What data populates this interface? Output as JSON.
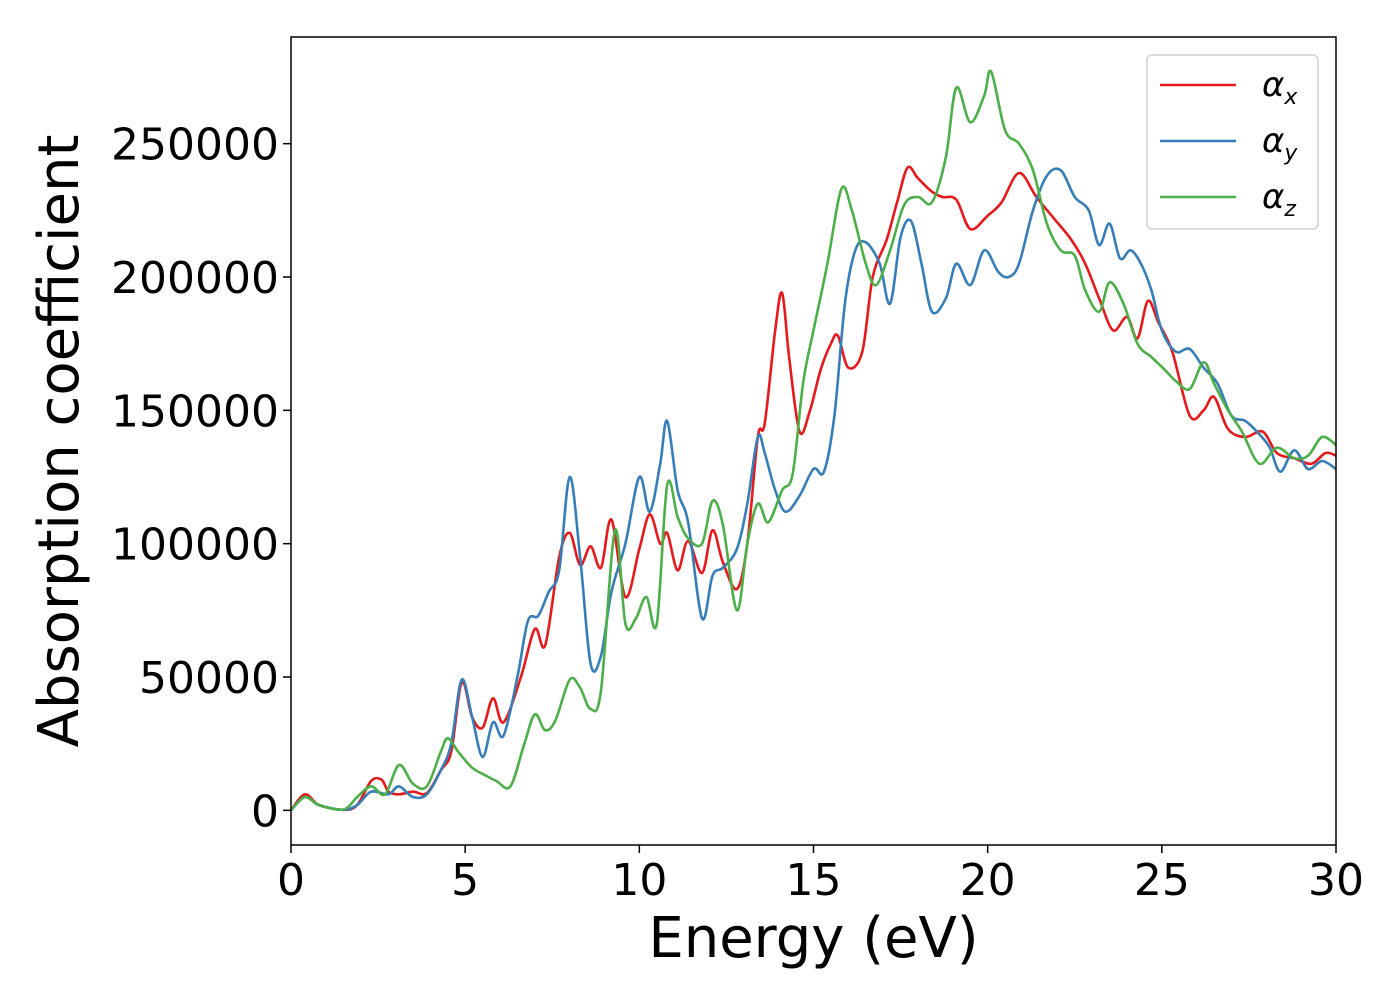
{
  "chart_data": {
    "type": "line",
    "title": "",
    "xlabel": "Energy (eV)",
    "ylabel": "Absorption coefficient",
    "xlim": [
      0,
      30
    ],
    "ylim": [
      -13000,
      290000
    ],
    "xticks": [
      0,
      5,
      10,
      15,
      20,
      25,
      30
    ],
    "yticks": [
      0,
      50000,
      100000,
      150000,
      200000,
      250000
    ],
    "grid": false,
    "legend_position": "top-right",
    "series": [
      {
        "name": "α",
        "subscript": "x",
        "color": "#e41a1c",
        "points": [
          [
            0,
            0
          ],
          [
            0.4,
            6000
          ],
          [
            0.8,
            2000
          ],
          [
            1.5,
            200
          ],
          [
            1.9,
            2000
          ],
          [
            2.3,
            11000
          ],
          [
            2.6,
            11500
          ],
          [
            2.8,
            7000
          ],
          [
            3.1,
            6000
          ],
          [
            3.5,
            7000
          ],
          [
            3.9,
            6500
          ],
          [
            4.3,
            15000
          ],
          [
            4.6,
            22000
          ],
          [
            4.9,
            48000
          ],
          [
            5.2,
            35000
          ],
          [
            5.5,
            31000
          ],
          [
            5.8,
            42000
          ],
          [
            6.1,
            33000
          ],
          [
            6.6,
            50000
          ],
          [
            7.0,
            68000
          ],
          [
            7.3,
            62000
          ],
          [
            7.7,
            95000
          ],
          [
            8.0,
            104000
          ],
          [
            8.3,
            92000
          ],
          [
            8.6,
            99000
          ],
          [
            8.9,
            91000
          ],
          [
            9.2,
            109000
          ],
          [
            9.6,
            80000
          ],
          [
            10.0,
            98000
          ],
          [
            10.3,
            111000
          ],
          [
            10.6,
            100000
          ],
          [
            10.8,
            104000
          ],
          [
            11.1,
            90000
          ],
          [
            11.4,
            101000
          ],
          [
            11.8,
            89000
          ],
          [
            12.1,
            105000
          ],
          [
            12.4,
            93000
          ],
          [
            12.8,
            83000
          ],
          [
            13.1,
            100000
          ],
          [
            13.4,
            140000
          ],
          [
            13.6,
            145000
          ],
          [
            13.9,
            180000
          ],
          [
            14.1,
            194000
          ],
          [
            14.3,
            170000
          ],
          [
            14.6,
            142000
          ],
          [
            14.9,
            150000
          ],
          [
            15.2,
            165000
          ],
          [
            15.5,
            175000
          ],
          [
            15.7,
            178000
          ],
          [
            16.0,
            166000
          ],
          [
            16.4,
            172000
          ],
          [
            16.7,
            200000
          ],
          [
            17.1,
            214000
          ],
          [
            17.4,
            228000
          ],
          [
            17.7,
            241000
          ],
          [
            18.0,
            237000
          ],
          [
            18.4,
            232000
          ],
          [
            18.7,
            230000
          ],
          [
            19.1,
            229000
          ],
          [
            19.5,
            218000
          ],
          [
            20.0,
            223000
          ],
          [
            20.4,
            228000
          ],
          [
            20.9,
            239000
          ],
          [
            21.4,
            230000
          ],
          [
            21.9,
            222000
          ],
          [
            22.4,
            214000
          ],
          [
            22.8,
            205000
          ],
          [
            23.2,
            192000
          ],
          [
            23.6,
            180000
          ],
          [
            24.0,
            185000
          ],
          [
            24.3,
            177000
          ],
          [
            24.6,
            191000
          ],
          [
            24.9,
            183000
          ],
          [
            25.3,
            172000
          ],
          [
            25.8,
            148000
          ],
          [
            26.2,
            150000
          ],
          [
            26.5,
            155000
          ],
          [
            26.9,
            143000
          ],
          [
            27.4,
            140000
          ],
          [
            27.9,
            142000
          ],
          [
            28.3,
            134000
          ],
          [
            28.8,
            132000
          ],
          [
            29.3,
            130000
          ],
          [
            29.7,
            134000
          ],
          [
            30.0,
            133000
          ]
        ]
      },
      {
        "name": "α",
        "subscript": "y",
        "color": "#377eb8",
        "points": [
          [
            0,
            0
          ],
          [
            0.4,
            5000
          ],
          [
            0.8,
            2000
          ],
          [
            1.5,
            200
          ],
          [
            1.9,
            2000
          ],
          [
            2.3,
            7000
          ],
          [
            2.8,
            6000
          ],
          [
            3.1,
            9000
          ],
          [
            3.5,
            5000
          ],
          [
            3.9,
            6000
          ],
          [
            4.3,
            15000
          ],
          [
            4.6,
            25000
          ],
          [
            4.9,
            49000
          ],
          [
            5.2,
            35000
          ],
          [
            5.5,
            20000
          ],
          [
            5.8,
            33000
          ],
          [
            6.1,
            28000
          ],
          [
            6.5,
            50000
          ],
          [
            6.8,
            71000
          ],
          [
            7.1,
            73000
          ],
          [
            7.4,
            82000
          ],
          [
            7.7,
            90000
          ],
          [
            8.0,
            125000
          ],
          [
            8.3,
            95000
          ],
          [
            8.6,
            55000
          ],
          [
            8.9,
            58000
          ],
          [
            9.2,
            82000
          ],
          [
            9.6,
            100000
          ],
          [
            10.0,
            125000
          ],
          [
            10.3,
            112000
          ],
          [
            10.6,
            130000
          ],
          [
            10.8,
            146000
          ],
          [
            11.1,
            120000
          ],
          [
            11.4,
            108000
          ],
          [
            11.8,
            72000
          ],
          [
            12.1,
            88000
          ],
          [
            12.4,
            91000
          ],
          [
            12.8,
            98000
          ],
          [
            13.1,
            115000
          ],
          [
            13.4,
            140000
          ],
          [
            13.6,
            134000
          ],
          [
            13.9,
            120000
          ],
          [
            14.2,
            112000
          ],
          [
            14.6,
            118000
          ],
          [
            15.0,
            128000
          ],
          [
            15.3,
            127000
          ],
          [
            15.6,
            148000
          ],
          [
            15.9,
            190000
          ],
          [
            16.2,
            210000
          ],
          [
            16.5,
            213000
          ],
          [
            16.9,
            205000
          ],
          [
            17.2,
            190000
          ],
          [
            17.5,
            215000
          ],
          [
            17.8,
            221000
          ],
          [
            18.1,
            205000
          ],
          [
            18.4,
            187000
          ],
          [
            18.8,
            192000
          ],
          [
            19.1,
            205000
          ],
          [
            19.5,
            197000
          ],
          [
            19.9,
            210000
          ],
          [
            20.3,
            202000
          ],
          [
            20.6,
            200000
          ],
          [
            20.9,
            205000
          ],
          [
            21.3,
            225000
          ],
          [
            21.7,
            238000
          ],
          [
            22.1,
            240000
          ],
          [
            22.5,
            230000
          ],
          [
            22.9,
            225000
          ],
          [
            23.2,
            212000
          ],
          [
            23.5,
            220000
          ],
          [
            23.8,
            207000
          ],
          [
            24.1,
            210000
          ],
          [
            24.4,
            205000
          ],
          [
            24.7,
            195000
          ],
          [
            25.0,
            180000
          ],
          [
            25.4,
            172000
          ],
          [
            25.8,
            173000
          ],
          [
            26.2,
            166000
          ],
          [
            26.6,
            160000
          ],
          [
            27.0,
            148000
          ],
          [
            27.4,
            146000
          ],
          [
            27.8,
            141000
          ],
          [
            28.1,
            136000
          ],
          [
            28.4,
            127000
          ],
          [
            28.8,
            135000
          ],
          [
            29.2,
            128000
          ],
          [
            29.6,
            131000
          ],
          [
            30.0,
            128000
          ]
        ]
      },
      {
        "name": "α",
        "subscript": "z",
        "color": "#4daf4a",
        "points": [
          [
            0,
            0
          ],
          [
            0.4,
            5000
          ],
          [
            0.8,
            2000
          ],
          [
            1.5,
            300
          ],
          [
            1.9,
            5000
          ],
          [
            2.3,
            9000
          ],
          [
            2.7,
            6000
          ],
          [
            3.1,
            17000
          ],
          [
            3.5,
            10000
          ],
          [
            3.9,
            9000
          ],
          [
            4.3,
            22000
          ],
          [
            4.5,
            27000
          ],
          [
            4.8,
            22000
          ],
          [
            5.2,
            16000
          ],
          [
            5.6,
            13000
          ],
          [
            5.9,
            11000
          ],
          [
            6.3,
            9000
          ],
          [
            6.7,
            25000
          ],
          [
            7.0,
            36000
          ],
          [
            7.3,
            30000
          ],
          [
            7.6,
            34000
          ],
          [
            8.0,
            49000
          ],
          [
            8.3,
            46000
          ],
          [
            8.6,
            38000
          ],
          [
            8.9,
            45000
          ],
          [
            9.3,
            105000
          ],
          [
            9.6,
            70000
          ],
          [
            9.9,
            72000
          ],
          [
            10.2,
            80000
          ],
          [
            10.5,
            70000
          ],
          [
            10.8,
            122000
          ],
          [
            11.1,
            110000
          ],
          [
            11.4,
            102000
          ],
          [
            11.8,
            100000
          ],
          [
            12.1,
            116000
          ],
          [
            12.4,
            107000
          ],
          [
            12.8,
            75000
          ],
          [
            13.1,
            100000
          ],
          [
            13.4,
            115000
          ],
          [
            13.7,
            108000
          ],
          [
            14.1,
            120000
          ],
          [
            14.4,
            126000
          ],
          [
            14.7,
            160000
          ],
          [
            15.0,
            180000
          ],
          [
            15.4,
            205000
          ],
          [
            15.8,
            233000
          ],
          [
            16.1,
            225000
          ],
          [
            16.5,
            205000
          ],
          [
            16.8,
            197000
          ],
          [
            17.2,
            210000
          ],
          [
            17.6,
            227000
          ],
          [
            18.0,
            230000
          ],
          [
            18.4,
            228000
          ],
          [
            18.8,
            245000
          ],
          [
            19.1,
            271000
          ],
          [
            19.5,
            258000
          ],
          [
            19.9,
            268000
          ],
          [
            20.1,
            277000
          ],
          [
            20.5,
            255000
          ],
          [
            20.9,
            250000
          ],
          [
            21.3,
            240000
          ],
          [
            21.7,
            220000
          ],
          [
            22.1,
            210000
          ],
          [
            22.5,
            208000
          ],
          [
            22.8,
            195000
          ],
          [
            23.2,
            187000
          ],
          [
            23.5,
            198000
          ],
          [
            23.9,
            190000
          ],
          [
            24.3,
            175000
          ],
          [
            24.7,
            170000
          ],
          [
            25.1,
            165000
          ],
          [
            25.4,
            161000
          ],
          [
            25.8,
            158000
          ],
          [
            26.2,
            168000
          ],
          [
            26.5,
            160000
          ],
          [
            26.9,
            150000
          ],
          [
            27.3,
            142000
          ],
          [
            27.8,
            130000
          ],
          [
            28.3,
            136000
          ],
          [
            28.8,
            132000
          ],
          [
            29.2,
            133000
          ],
          [
            29.6,
            140000
          ],
          [
            30.0,
            137000
          ]
        ]
      }
    ]
  }
}
